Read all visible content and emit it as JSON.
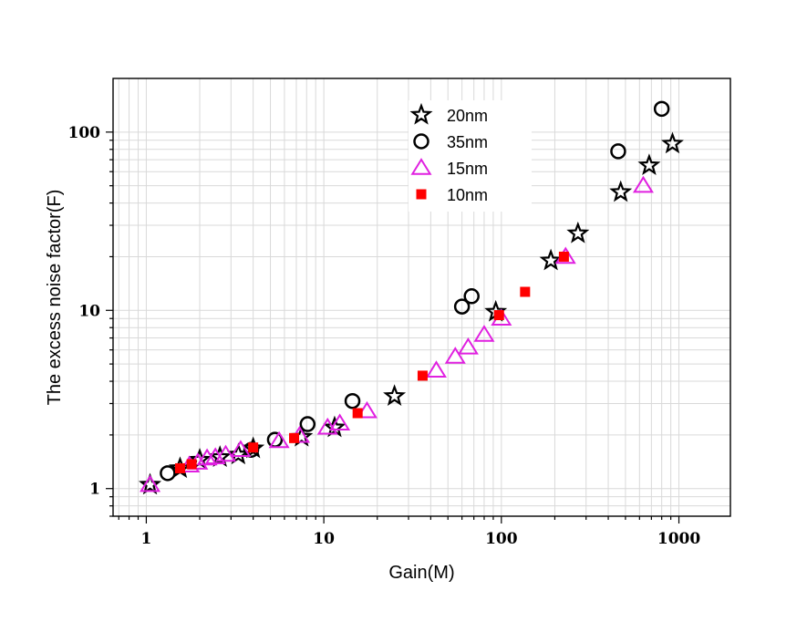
{
  "chart_data": {
    "type": "scatter",
    "title": "",
    "xlabel": "Gain(M)",
    "ylabel": "The excess noise factor(F)",
    "x_scale": "log",
    "y_scale": "log",
    "xlim": [
      0.65,
      1950
    ],
    "ylim": [
      0.7,
      200
    ],
    "x_ticks": [
      1,
      10,
      100,
      1000
    ],
    "x_tick_labels": [
      "1",
      "10",
      "100",
      "1000"
    ],
    "y_ticks": [
      1,
      10,
      100
    ],
    "y_tick_labels": [
      "1",
      "10",
      "100"
    ],
    "grid": true,
    "legend_position": "top-center",
    "series": [
      {
        "name": "20nm",
        "marker": "star",
        "color": "#000000",
        "fill": "none",
        "points": [
          [
            1.05,
            1.05
          ],
          [
            1.55,
            1.3
          ],
          [
            2.0,
            1.45
          ],
          [
            2.6,
            1.5
          ],
          [
            3.3,
            1.55
          ],
          [
            4.0,
            1.68
          ],
          [
            7.5,
            1.95
          ],
          [
            11.5,
            2.2
          ],
          [
            25,
            3.3
          ],
          [
            93,
            9.8
          ],
          [
            190,
            19
          ],
          [
            270,
            27
          ],
          [
            470,
            46
          ],
          [
            680,
            65
          ],
          [
            920,
            86
          ]
        ]
      },
      {
        "name": "35nm",
        "marker": "circle",
        "color": "#000000",
        "fill": "none",
        "points": [
          [
            1.32,
            1.22
          ],
          [
            3.9,
            1.65
          ],
          [
            5.3,
            1.88
          ],
          [
            8.1,
            2.3
          ],
          [
            14.5,
            3.1
          ],
          [
            60,
            10.5
          ],
          [
            68,
            12
          ],
          [
            455,
            78
          ],
          [
            800,
            135
          ]
        ]
      },
      {
        "name": "15nm",
        "marker": "triangle",
        "color": "#e020e0",
        "fill": "none",
        "points": [
          [
            1.05,
            1.05
          ],
          [
            1.75,
            1.35
          ],
          [
            1.95,
            1.4
          ],
          [
            2.2,
            1.48
          ],
          [
            2.45,
            1.5
          ],
          [
            2.8,
            1.55
          ],
          [
            3.4,
            1.65
          ],
          [
            5.6,
            1.85
          ],
          [
            7.3,
            1.98
          ],
          [
            10.5,
            2.2
          ],
          [
            12.3,
            2.32
          ],
          [
            17.5,
            2.72
          ],
          [
            43,
            4.6
          ],
          [
            55,
            5.5
          ],
          [
            65,
            6.2
          ],
          [
            80,
            7.3
          ],
          [
            100,
            9.0
          ],
          [
            230,
            20
          ],
          [
            630,
            50
          ]
        ]
      },
      {
        "name": "10nm",
        "marker": "square",
        "color": "#ff0000",
        "fill": "#ff0000",
        "points": [
          [
            1.55,
            1.3
          ],
          [
            1.8,
            1.37
          ],
          [
            4.0,
            1.7
          ],
          [
            6.8,
            1.92
          ],
          [
            15.5,
            2.65
          ],
          [
            36,
            4.3
          ],
          [
            97,
            9.4
          ],
          [
            136,
            12.7
          ],
          [
            225,
            20
          ]
        ]
      }
    ]
  }
}
